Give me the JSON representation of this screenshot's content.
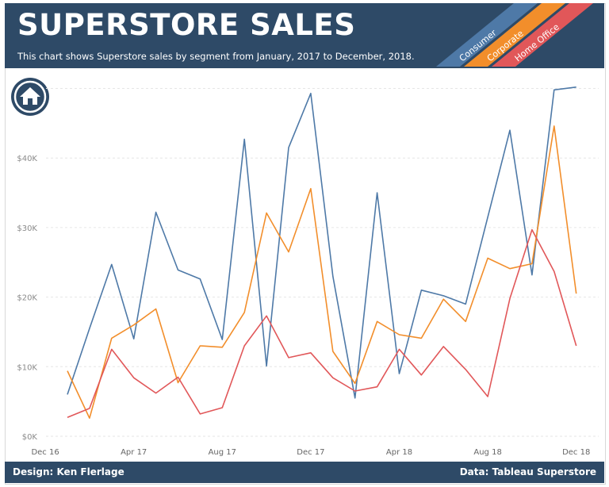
{
  "header": {
    "title": "SUPERSTORE SALES",
    "subtitle": "This chart shows Superstore sales by segment from January, 2017 to December, 2018."
  },
  "colors": {
    "header_bg": "#2e4a67",
    "consumer": "#4e79a7",
    "corporate": "#f28e2b",
    "home_office": "#e15759"
  },
  "icon": "home-icon",
  "footer": {
    "left": "Design: Ken Flerlage",
    "right": "Data: Tableau Superstore"
  },
  "chart_data": {
    "type": "line",
    "title": "",
    "xlabel": "",
    "ylabel": "",
    "ylim": [
      0,
      52000
    ],
    "ytick_values": [
      0,
      10000,
      20000,
      30000,
      40000
    ],
    "ytick_labels": [
      "$0K",
      "$10K",
      "$20K",
      "$30K",
      "$40K"
    ],
    "xtick_labels": [
      "Dec 16",
      "Apr 17",
      "Aug 17",
      "Dec 17",
      "Apr 18",
      "Aug 18",
      "Dec 18"
    ],
    "xtick_dates": [
      "2016-12",
      "2017-04",
      "2017-08",
      "2017-12",
      "2018-04",
      "2018-08",
      "2018-12"
    ],
    "grid": true,
    "legend_placement": "top-right",
    "x": [
      "2017-01",
      "2017-02",
      "2017-03",
      "2017-04",
      "2017-05",
      "2017-06",
      "2017-07",
      "2017-08",
      "2017-09",
      "2017-10",
      "2017-11",
      "2017-12",
      "2018-01",
      "2018-02",
      "2018-03",
      "2018-04",
      "2018-05",
      "2018-06",
      "2018-07",
      "2018-08",
      "2018-09",
      "2018-10",
      "2018-11",
      "2018-12"
    ],
    "series": [
      {
        "name": "Consumer",
        "color": "#4e79a7",
        "values": [
          6000,
          15500,
          24700,
          14000,
          32200,
          23900,
          22600,
          13900,
          42700,
          10100,
          41500,
          49300,
          23000,
          5500,
          35000,
          9000,
          21000,
          20200,
          19000,
          31500,
          44000,
          23200,
          49800,
          50200
        ]
      },
      {
        "name": "Corporate",
        "color": "#f28e2b",
        "values": [
          9400,
          2600,
          14100,
          16000,
          18300,
          7700,
          13000,
          12800,
          17800,
          32100,
          26500,
          35600,
          12200,
          7600,
          16500,
          14600,
          14100,
          19700,
          16500,
          25600,
          24100,
          24800,
          44600,
          20500
        ]
      },
      {
        "name": "Home Office",
        "color": "#e15759",
        "values": [
          2700,
          4000,
          12500,
          8400,
          6200,
          8500,
          3200,
          4100,
          13000,
          17300,
          11300,
          12000,
          8400,
          6500,
          7100,
          12500,
          8800,
          12900,
          9600,
          5700,
          19800,
          29700,
          23700,
          13000
        ]
      }
    ]
  }
}
